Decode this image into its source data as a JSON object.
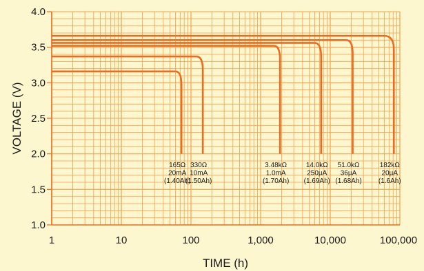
{
  "chart_data": {
    "type": "line",
    "xscale": "log",
    "xlim": [
      1,
      100000
    ],
    "ylim": [
      1.0,
      4.0
    ],
    "grid": true,
    "xlabel": "TIME (h)",
    "ylabel": "VOLTAGE (V)",
    "x_tick_labels": [
      "1",
      "10",
      "100",
      "1,000",
      "10,000",
      "100,000"
    ],
    "y_tick_labels": [
      "1.0",
      "1.5",
      "2.0",
      "2.5",
      "3.0",
      "3.5",
      "4.0"
    ],
    "colors": {
      "grid": "#f5a04a",
      "line": "#ef6a1c",
      "axis": "#ef6a1c",
      "background": "#fdf7cf"
    },
    "series": [
      {
        "annotation": [
          "165Ω",
          "20mA",
          "(1.40Ah)"
        ],
        "plateau_v": 3.16,
        "knee_h": 60,
        "end_h": 73,
        "end_v": 2.0
      },
      {
        "annotation": [
          "330Ω",
          "10mA",
          "(1.50Ah)"
        ],
        "plateau_v": 3.37,
        "knee_h": 120,
        "end_h": 148,
        "end_v": 2.0
      },
      {
        "annotation": [
          "3.48kΩ",
          "1.0mA",
          "(1.70Ah)"
        ],
        "plateau_v": 3.52,
        "knee_h": 1550,
        "end_h": 1900,
        "end_v": 2.0
      },
      {
        "annotation": [
          "14.0kΩ",
          "250µA",
          "(1.69Ah)"
        ],
        "plateau_v": 3.56,
        "knee_h": 6000,
        "end_h": 7400,
        "end_v": 2.0
      },
      {
        "annotation": [
          "51.0kΩ",
          "36µA",
          "(1.68Ah)"
        ],
        "plateau_v": 3.6,
        "knee_h": 17000,
        "end_h": 21000,
        "end_v": 2.0
      },
      {
        "annotation": [
          "182kΩ",
          "20µA",
          "(1.6Ah)"
        ],
        "plateau_v": 3.66,
        "knee_h": 60000,
        "end_h": 82000,
        "end_v": 2.0
      }
    ]
  }
}
